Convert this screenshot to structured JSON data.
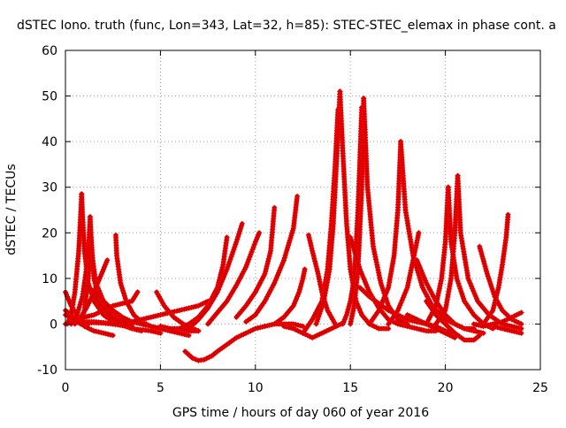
{
  "chart_data": {
    "type": "scatter",
    "title": "dSTEC Iono. truth (func, Lon=343, Lat=32, h=85): STEC-STEC_elemax in phase cont. a",
    "xlabel": "GPS time / hours of day 060 of year 2016",
    "ylabel": "dSTEC  / TECUs",
    "xlim": [
      0,
      25
    ],
    "ylim": [
      -10,
      60
    ],
    "xticks": [
      "0",
      "5",
      "10",
      "15",
      "20",
      "25"
    ],
    "yticks": [
      "-10",
      "0",
      "10",
      "20",
      "30",
      "40",
      "50",
      "60"
    ],
    "grid": true,
    "marker": "+",
    "series_color": "#ff0000",
    "marker_color": "#c80000",
    "series": [
      {
        "x": [
          0.0,
          0.3,
          0.6,
          0.8,
          1.0,
          1.2
        ],
        "y": [
          7,
          4,
          2,
          1,
          0.5,
          0
        ]
      },
      {
        "x": [
          0.0,
          0.3,
          0.6,
          1.0,
          1.5,
          2.0,
          2.5
        ],
        "y": [
          0,
          0.5,
          1,
          -0.5,
          -1.5,
          -2,
          -2.5
        ]
      },
      {
        "x": [
          0.0,
          0.3,
          0.6,
          0.8
        ],
        "y": [
          3,
          2,
          0.5,
          0
        ]
      },
      {
        "x": [
          0.1,
          0.3,
          0.5,
          0.7,
          0.8,
          0.85
        ],
        "y": [
          0,
          2,
          7,
          16,
          24,
          28.5
        ]
      },
      {
        "x": [
          0.85,
          0.9,
          1.0,
          1.2,
          1.5,
          2.0,
          2.5,
          3.0
        ],
        "y": [
          28.5,
          24,
          16,
          9,
          5,
          2,
          0.5,
          0
        ]
      },
      {
        "x": [
          0.3,
          0.6,
          0.9,
          1.1,
          1.25,
          1.3
        ],
        "y": [
          0,
          2,
          6,
          12,
          19,
          23.5
        ]
      },
      {
        "x": [
          1.3,
          1.4,
          1.6,
          2.0,
          2.5,
          3.0,
          3.5
        ],
        "y": [
          23.5,
          15,
          9,
          5,
          2,
          0.5,
          0
        ]
      },
      {
        "x": [
          0.8,
          1.0,
          1.2,
          1.35
        ],
        "y": [
          0,
          3,
          10,
          19
        ]
      },
      {
        "x": [
          1.35,
          1.5,
          1.8,
          2.2,
          2.8,
          3.5,
          4.5,
          5.0
        ],
        "y": [
          19,
          10,
          5,
          2,
          0,
          -1,
          -1.5,
          -2
        ]
      },
      {
        "x": [
          0.5,
          0.8,
          1.1,
          1.4,
          1.7,
          2.0,
          2.2
        ],
        "y": [
          0,
          1.5,
          3.5,
          6,
          9,
          12,
          14
        ]
      },
      {
        "x": [
          2.65,
          2.7,
          2.9,
          3.2,
          3.6,
          4.0,
          4.5,
          5.0,
          5.5
        ],
        "y": [
          19.5,
          15,
          9,
          5,
          2,
          0.5,
          -0.5,
          -1,
          -1
        ]
      },
      {
        "x": [
          0.5,
          1.0,
          1.5,
          2.0,
          2.5,
          3.0,
          3.5,
          3.8
        ],
        "y": [
          1,
          1.5,
          2,
          3,
          4,
          4.5,
          5,
          7
        ]
      },
      {
        "x": [
          1.0,
          1.5,
          2.0,
          2.5,
          3.0,
          3.5,
          4.0
        ],
        "y": [
          9,
          6,
          3.5,
          1.5,
          0,
          -1,
          -1.5
        ]
      },
      {
        "x": [
          0.0,
          0.5,
          1.0,
          1.5,
          2.0,
          2.5,
          3.0,
          3.5
        ],
        "y": [
          2,
          1,
          0.5,
          0.5,
          0.3,
          0,
          -0.3,
          -0.5
        ]
      },
      {
        "x": [
          0.5,
          1.0,
          1.5,
          2.0,
          2.5,
          3.0
        ],
        "y": [
          0.5,
          0.3,
          0.3,
          0.2,
          0,
          -0.3
        ]
      },
      {
        "x": [
          1.0,
          1.5,
          2.0,
          2.5,
          3.0,
          3.3
        ],
        "y": [
          9,
          7,
          5,
          3,
          1,
          0
        ]
      },
      {
        "x": [
          4.8,
          5.2,
          5.7,
          6.2,
          6.7,
          7.0
        ],
        "y": [
          7,
          4,
          1.5,
          0,
          -1,
          -1.5
        ]
      },
      {
        "x": [
          2.0,
          2.5,
          3.0,
          3.5,
          4.0,
          4.5,
          5.0,
          5.5,
          6.0,
          6.5
        ],
        "y": [
          5,
          3,
          1.5,
          0.5,
          0,
          -0.5,
          -1,
          -1.5,
          -2,
          -2.5
        ]
      },
      {
        "x": [
          3.5,
          4.0,
          4.5,
          5.0,
          5.5,
          6.0,
          6.5,
          7.0,
          7.5
        ],
        "y": [
          0.5,
          1,
          1.5,
          2,
          2.5,
          3,
          3.5,
          4,
          5
        ]
      },
      {
        "x": [
          5.0,
          5.5,
          6.0,
          6.5,
          7.0
        ],
        "y": [
          -0.5,
          -1,
          -1,
          -1.5,
          -1.5
        ]
      },
      {
        "x": [
          6.3,
          6.7,
          7.0,
          7.3,
          7.7
        ],
        "y": [
          -6,
          -7.5,
          -8,
          -7.8,
          -7
        ]
      },
      {
        "x": [
          7.7,
          8.0,
          8.5,
          9.0,
          9.5,
          10.0,
          10.5,
          11.0,
          11.5,
          12.0,
          12.5
        ],
        "y": [
          -7,
          -6,
          -4.5,
          -3,
          -2,
          -1,
          -0.5,
          0,
          0,
          0,
          -0.5
        ]
      },
      {
        "x": [
          6.0,
          6.5,
          7.0,
          7.5,
          8.0,
          8.3,
          8.5
        ],
        "y": [
          -1,
          0,
          1.5,
          4,
          8,
          13,
          19
        ]
      },
      {
        "x": [
          6.5,
          7.0,
          7.5,
          8.0,
          8.5,
          9.0,
          9.3
        ],
        "y": [
          -1,
          1,
          3.5,
          7,
          12,
          18,
          22
        ]
      },
      {
        "x": [
          7.5,
          8.0,
          8.5,
          9.0,
          9.5,
          10.0,
          10.2
        ],
        "y": [
          0,
          2.5,
          5,
          8.5,
          12.5,
          18,
          20
        ]
      },
      {
        "x": [
          9.0,
          9.5,
          10.0,
          10.5,
          10.8,
          11.0
        ],
        "y": [
          1.5,
          4,
          7,
          11,
          16,
          25.5
        ]
      },
      {
        "x": [
          9.5,
          10.0,
          10.5,
          11.0,
          11.5,
          12.0,
          12.2
        ],
        "y": [
          0.5,
          2,
          5,
          9,
          14,
          21,
          28
        ]
      },
      {
        "x": [
          11.0,
          11.5,
          12.0,
          12.3,
          12.5,
          12.6
        ],
        "y": [
          0,
          1.5,
          4,
          7,
          10,
          12
        ]
      },
      {
        "x": [
          12.8,
          13.0,
          13.3,
          13.5,
          13.8,
          14.2
        ],
        "y": [
          19.5,
          16,
          11,
          7,
          3,
          0
        ]
      },
      {
        "x": [
          11.5,
          12.0,
          12.5,
          13.0,
          13.5,
          14.0,
          14.5
        ],
        "y": [
          -0.5,
          -1,
          -2,
          -3,
          -2,
          -1,
          0
        ]
      },
      {
        "x": [
          12.5,
          13.0,
          13.5,
          13.8,
          14.0,
          14.2,
          14.35
        ],
        "y": [
          -2,
          1,
          5,
          12,
          22,
          35,
          47
        ]
      },
      {
        "x": [
          13.2,
          13.6,
          13.9,
          14.1,
          14.3,
          14.45
        ],
        "y": [
          0,
          5,
          12,
          22,
          38,
          51
        ]
      },
      {
        "x": [
          14.45,
          14.6,
          14.8,
          15.0,
          15.3,
          15.6,
          16.0,
          16.5,
          17.0
        ],
        "y": [
          51,
          38,
          22,
          12,
          5,
          2,
          0,
          -1,
          -1
        ]
      },
      {
        "x": [
          14.6,
          14.8,
          15.0,
          15.2,
          15.4,
          15.6
        ],
        "y": [
          0,
          2,
          5,
          10,
          25,
          47.5
        ]
      },
      {
        "x": [
          15.0,
          15.2,
          15.4,
          15.6,
          15.7
        ],
        "y": [
          0,
          4,
          12,
          30,
          49.5
        ]
      },
      {
        "x": [
          15.7,
          15.9,
          16.2,
          16.6,
          17.0,
          17.5,
          18.0
        ],
        "y": [
          49.5,
          30,
          17,
          9,
          4,
          1,
          0
        ]
      },
      {
        "x": [
          15.0,
          15.5,
          16.0,
          16.5,
          17.0,
          17.5,
          18.0,
          18.5,
          19.0,
          19.5
        ],
        "y": [
          19,
          12,
          7,
          3.5,
          1,
          0,
          -0.5,
          -1,
          -1.5,
          -1.5
        ]
      },
      {
        "x": [
          15.5,
          16.0,
          16.5,
          17.0,
          17.5,
          18.0,
          18.5,
          19.0,
          19.5,
          20.0,
          20.5
        ],
        "y": [
          8,
          6,
          4.5,
          3,
          2,
          1,
          0.5,
          0,
          -0.5,
          -1.5,
          -2
        ]
      },
      {
        "x": [
          16.0,
          16.5,
          17.0,
          17.3,
          17.5,
          17.65
        ],
        "y": [
          0,
          3,
          8,
          15,
          25,
          40
        ]
      },
      {
        "x": [
          17.65,
          17.9,
          18.3,
          18.8,
          19.3,
          20.0,
          20.5,
          21.0,
          21.5,
          22.0
        ],
        "y": [
          40,
          25,
          15,
          8,
          4,
          1,
          0,
          -1,
          -1.5,
          -2
        ]
      },
      {
        "x": [
          17.0,
          17.5,
          18.0,
          18.3,
          18.6
        ],
        "y": [
          0,
          3,
          8,
          14,
          20
        ]
      },
      {
        "x": [
          18.5,
          19.0,
          19.5,
          20.0,
          20.5,
          21.0,
          21.5
        ],
        "y": [
          14,
          9,
          5,
          2,
          0,
          -1,
          -1
        ]
      },
      {
        "x": [
          19.0,
          19.5,
          19.8,
          20.0,
          20.15
        ],
        "y": [
          0,
          4,
          10,
          18,
          30
        ]
      },
      {
        "x": [
          20.15,
          20.3,
          20.6,
          21.0,
          21.5,
          22.0,
          22.5
        ],
        "y": [
          30,
          18,
          10,
          5,
          2,
          0,
          -1
        ]
      },
      {
        "x": [
          19.5,
          20.0,
          20.3,
          20.5,
          20.65
        ],
        "y": [
          0,
          3,
          10,
          20,
          32.5
        ]
      },
      {
        "x": [
          20.65,
          20.8,
          21.2,
          21.7,
          22.3,
          23.0,
          23.5,
          24.0
        ],
        "y": [
          32.5,
          20,
          10,
          5,
          2,
          0,
          -0.5,
          -1
        ]
      },
      {
        "x": [
          19.0,
          19.5,
          20.0,
          20.5,
          21.0,
          21.5,
          21.8
        ],
        "y": [
          5,
          2,
          0,
          -2,
          -3.5,
          -3.5,
          -2.5
        ]
      },
      {
        "x": [
          18.0,
          18.5,
          19.0,
          19.5,
          20.0,
          20.5
        ],
        "y": [
          2,
          1,
          0,
          -1,
          -2,
          -3
        ]
      },
      {
        "x": [
          21.8,
          22.2,
          22.6,
          23.0,
          23.5,
          24.0
        ],
        "y": [
          17,
          11,
          6,
          3,
          1,
          0
        ]
      },
      {
        "x": [
          22.0,
          22.5,
          22.8,
          23.0,
          23.2,
          23.3
        ],
        "y": [
          0,
          3,
          8,
          13,
          19,
          24
        ]
      },
      {
        "x": [
          22.0,
          22.5,
          23.0,
          23.5,
          24.0
        ],
        "y": [
          0,
          -0.5,
          -1,
          -1.5,
          -2
        ]
      },
      {
        "x": [
          21.5,
          22.0,
          22.5,
          23.0,
          23.5,
          24.0
        ],
        "y": [
          0,
          -0.5,
          0,
          0.5,
          1.5,
          2.5
        ]
      }
    ]
  }
}
